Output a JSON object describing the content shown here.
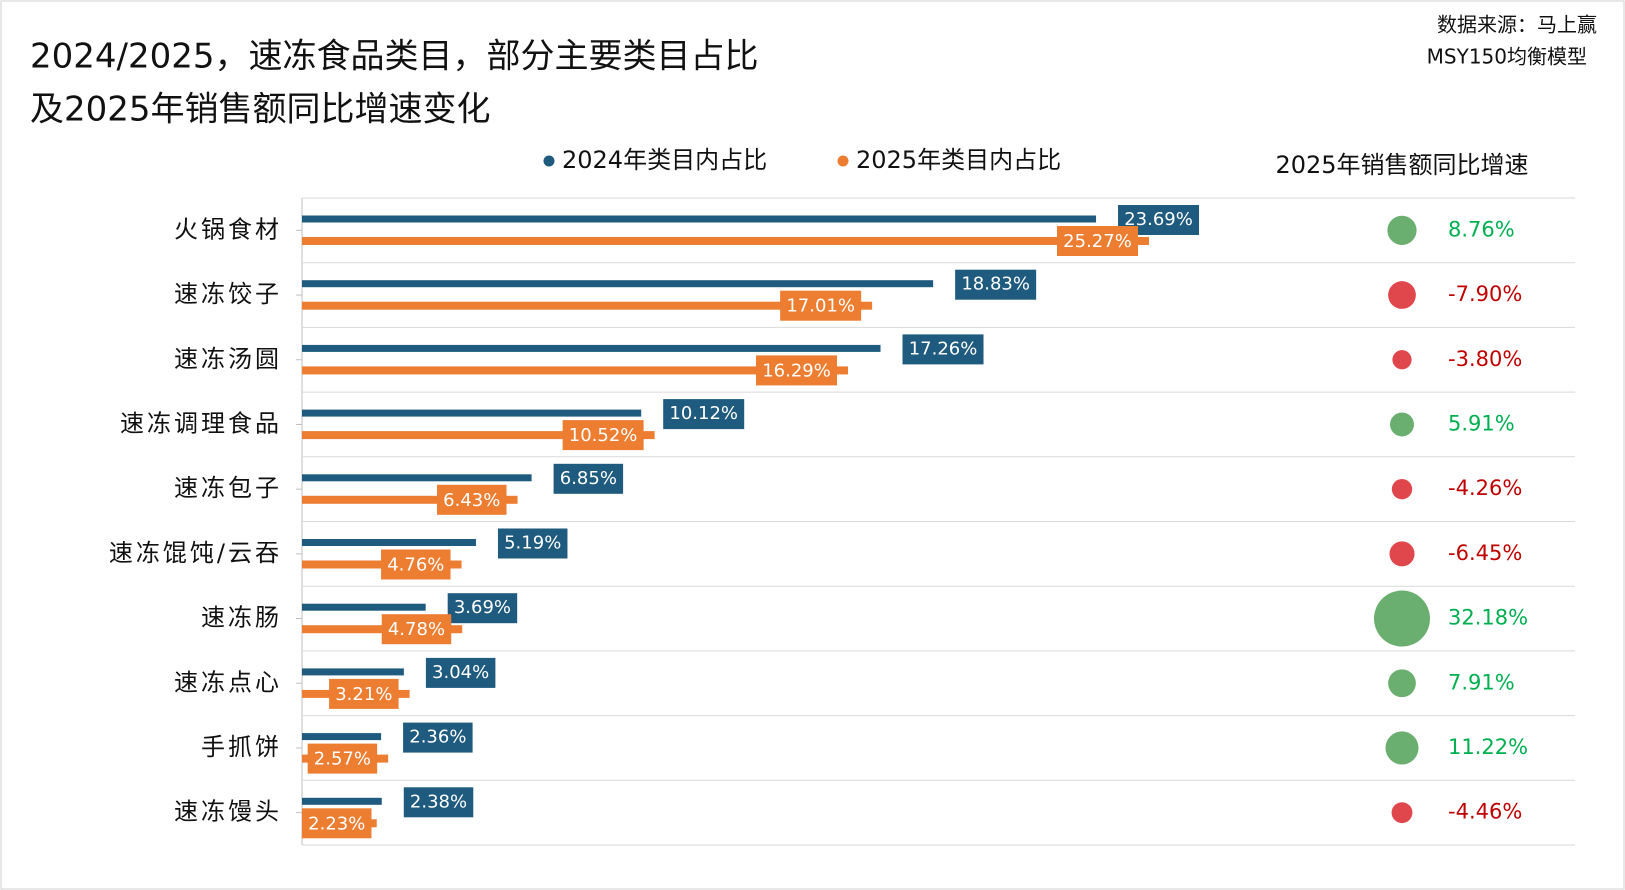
{
  "chart_data": {
    "type": "bar",
    "orientation": "horizontal",
    "title": [
      "2024/2025，速冻食品类目，部分主要类目占比",
      "及2025年销售额同比增速变化"
    ],
    "source": [
      "数据来源：马上赢",
      "MSY150均衡模型"
    ],
    "categories": [
      "火锅食材",
      "速冻饺子",
      "速冻汤圆",
      "速冻调理食品",
      "速冻包子",
      "速冻馄饨/云吞",
      "速冻肠",
      "速冻点心",
      "手抓饼",
      "速冻馒头"
    ],
    "series": [
      {
        "name": "2024年类目内占比",
        "color": "#1f5a7f",
        "values": [
          23.69,
          18.83,
          17.26,
          10.12,
          6.85,
          5.19,
          3.69,
          3.04,
          2.36,
          2.38
        ],
        "value_labels": [
          "23.69%",
          "18.83%",
          "17.26%",
          "10.12%",
          "6.85%",
          "5.19%",
          "3.69%",
          "3.04%",
          "2.36%",
          "2.38%"
        ]
      },
      {
        "name": "2025年类目内占比",
        "color": "#ed7d31",
        "values": [
          25.27,
          17.01,
          16.29,
          10.52,
          6.43,
          4.76,
          4.78,
          3.21,
          2.57,
          2.23
        ],
        "value_labels": [
          "25.27%",
          "17.01%",
          "16.29%",
          "10.52%",
          "6.43%",
          "4.76%",
          "4.78%",
          "3.21%",
          "2.57%",
          "2.23%"
        ]
      }
    ],
    "bubble": {
      "title": "2025年销售额同比增速",
      "values": [
        8.76,
        -7.9,
        -3.8,
        5.91,
        -4.26,
        -6.45,
        32.18,
        7.91,
        11.22,
        -4.46
      ],
      "value_labels": [
        "8.76%",
        "-7.90%",
        "-3.80%",
        "5.91%",
        "-4.26%",
        "-6.45%",
        "32.18%",
        "7.91%",
        "11.22%",
        "-4.46%"
      ],
      "positive_color": "#6aaf6f",
      "negative_color": "#e0474c",
      "positive_text_color": "#00b050",
      "negative_text_color": "#c00000"
    },
    "legend": "top"
  }
}
